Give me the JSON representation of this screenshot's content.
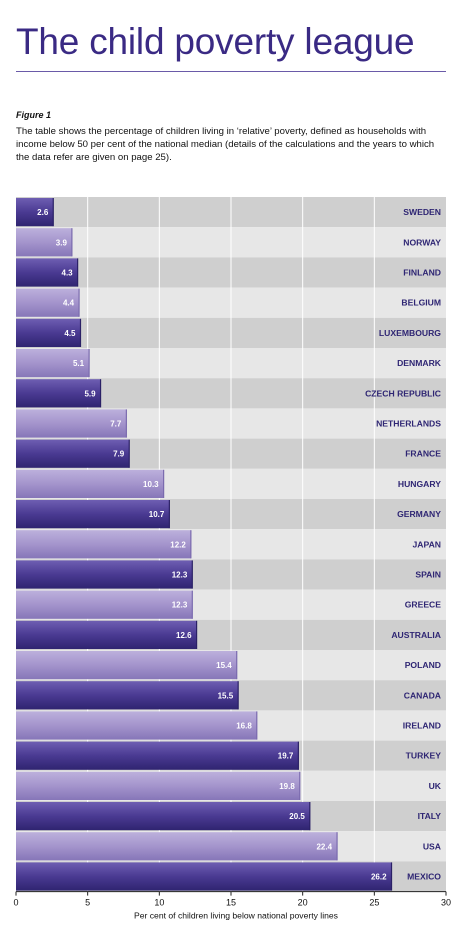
{
  "header": {
    "title": "The child poverty league"
  },
  "figure": {
    "label": "Figure 1",
    "caption": "The table shows the percentage of children living in ‘relative’ poverty, defined as households with income below 50 per cent of the national median (details of the calculations and the years to which the data refer are given on page 25)."
  },
  "colors": {
    "bar_dark": "#4b3a93",
    "bar_light": "#a596cc",
    "row_dark": "#cfcfcf",
    "row_light": "#e7e7e7",
    "category_text": "#2e2573",
    "title": "#3a2a84"
  },
  "chart_data": {
    "type": "bar",
    "orientation": "horizontal",
    "categories": [
      "SWEDEN",
      "NORWAY",
      "FINLAND",
      "BELGIUM",
      "LUXEMBOURG",
      "DENMARK",
      "CZECH REPUBLIC",
      "NETHERLANDS",
      "FRANCE",
      "HUNGARY",
      "GERMANY",
      "JAPAN",
      "SPAIN",
      "GREECE",
      "AUSTRALIA",
      "POLAND",
      "CANADA",
      "IRELAND",
      "TURKEY",
      "UK",
      "ITALY",
      "USA",
      "MEXICO"
    ],
    "values": [
      2.6,
      3.9,
      4.3,
      4.4,
      4.5,
      5.1,
      5.9,
      7.7,
      7.9,
      10.3,
      10.7,
      12.2,
      12.3,
      12.3,
      12.6,
      15.4,
      15.5,
      16.8,
      19.7,
      19.8,
      20.5,
      22.4,
      26.2
    ],
    "title": "",
    "xlabel": "Per cent of children living below national poverty lines",
    "ylabel": "",
    "xlim": [
      0,
      30
    ],
    "xticks": [
      0,
      5,
      10,
      15,
      20,
      25,
      30
    ],
    "grid": true
  }
}
